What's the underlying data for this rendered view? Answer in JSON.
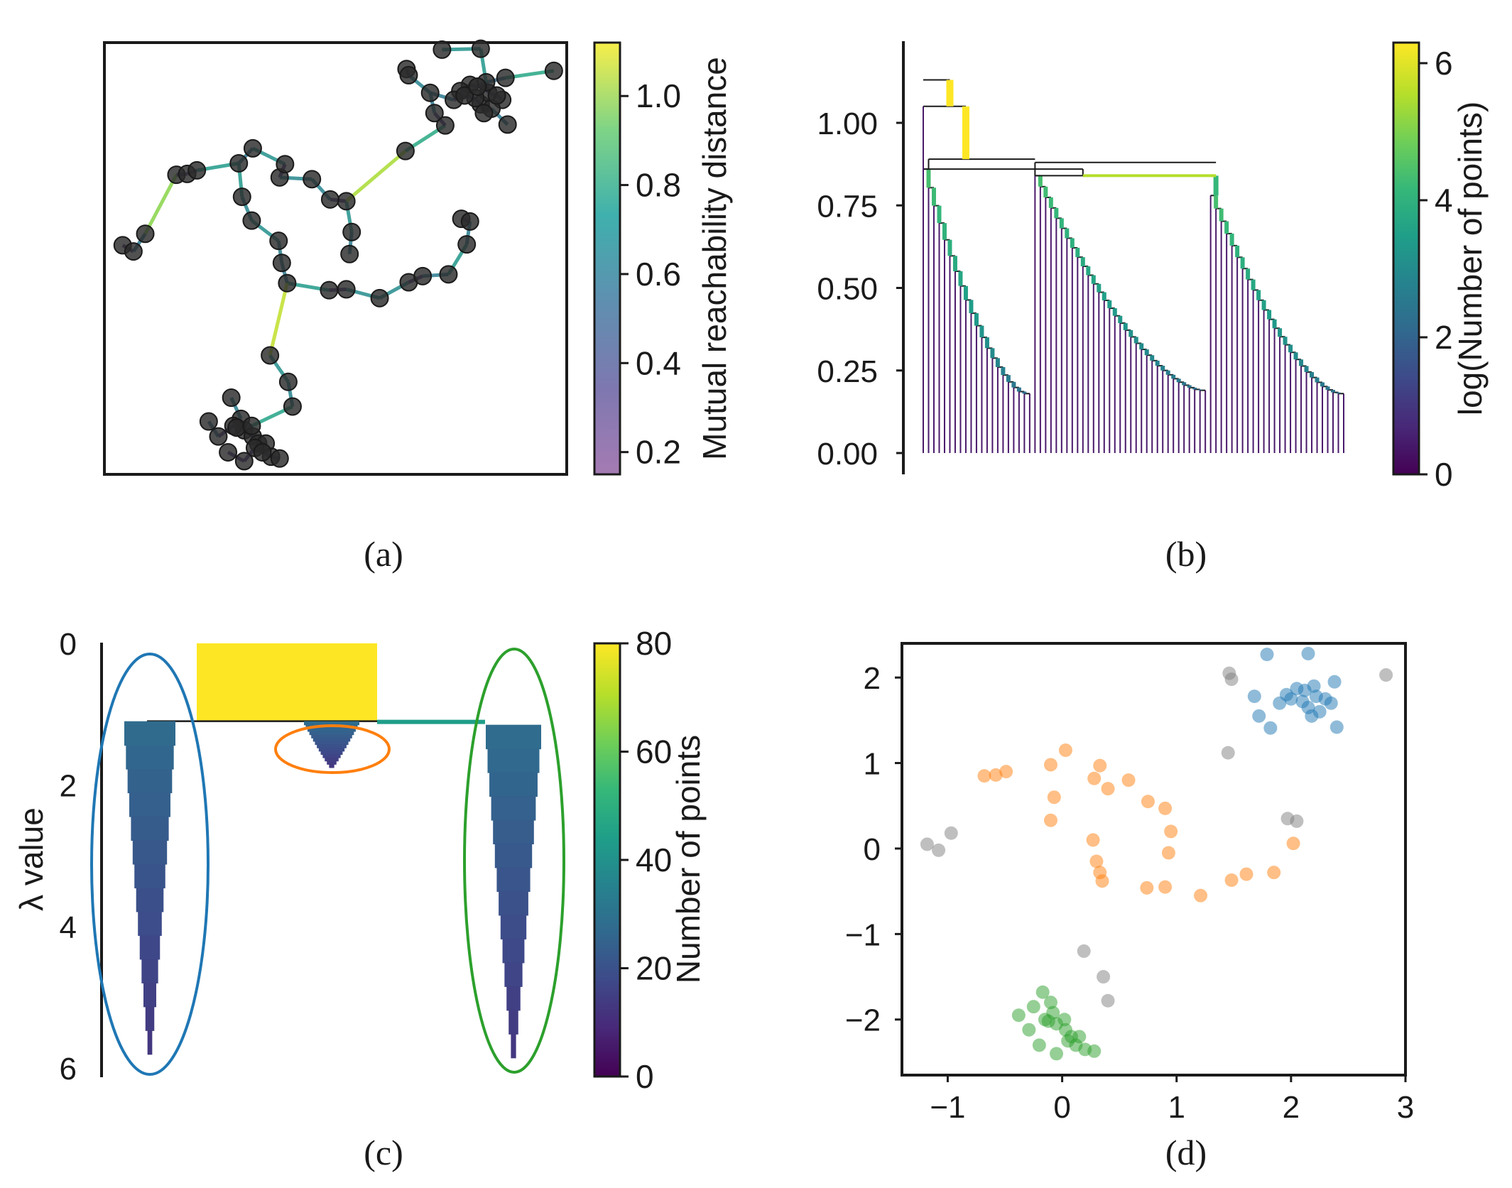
{
  "panels": {
    "a": {
      "label": "(a)"
    },
    "b": {
      "label": "(b)"
    },
    "c": {
      "label": "(c)"
    },
    "d": {
      "label": "(d)"
    }
  },
  "colors": {
    "axes": "#1a1a1a",
    "viridis": [
      "#440154",
      "#482878",
      "#3e4989",
      "#31688e",
      "#26828e",
      "#1f9e89",
      "#35b779",
      "#6ece58",
      "#b5de2b",
      "#fde725"
    ],
    "cluster_blue": "#1f77b4",
    "cluster_orange": "#ff7f0e",
    "cluster_green": "#2ca02c",
    "noise_grey": "#7f7f7f"
  },
  "chart_data": [
    {
      "panel": "a",
      "type": "scatter",
      "title": "",
      "colorbar": {
        "label": "Mutual reachability distance",
        "ticks": [
          "0.2",
          "0.4",
          "0.6",
          "0.8",
          "1.0"
        ],
        "range": [
          0.15,
          1.12
        ]
      },
      "note": "minimum spanning tree over points; points in panel units (same data as panel d)",
      "points": [
        [
          -1.18,
          0.05
        ],
        [
          -1.08,
          -0.02
        ],
        [
          -0.97,
          0.18
        ],
        [
          -0.68,
          0.85
        ],
        [
          -0.58,
          0.86
        ],
        [
          -0.49,
          0.9
        ],
        [
          -0.1,
          0.98
        ],
        [
          -0.07,
          0.6
        ],
        [
          0.02,
          0.33
        ],
        [
          0.03,
          1.15
        ],
        [
          0.28,
          0.82
        ],
        [
          0.33,
          0.97
        ],
        [
          0.58,
          0.8
        ],
        [
          0.27,
          0.1
        ],
        [
          0.3,
          -0.15
        ],
        [
          0.35,
          -0.38
        ],
        [
          0.74,
          -0.46
        ],
        [
          0.9,
          -0.45
        ],
        [
          1.21,
          -0.55
        ],
        [
          1.48,
          -0.37
        ],
        [
          1.61,
          -0.3
        ],
        [
          1.85,
          -0.28
        ],
        [
          2.02,
          0.06
        ],
        [
          0.9,
          0.55
        ],
        [
          0.75,
          0.57
        ],
        [
          0.95,
          0.2
        ],
        [
          0.93,
          -0.05
        ],
        [
          1.97,
          0.35
        ],
        [
          2.05,
          0.32
        ],
        [
          1.45,
          1.12
        ],
        [
          1.46,
          2.05
        ],
        [
          1.48,
          1.98
        ],
        [
          1.79,
          2.27
        ],
        [
          2.15,
          2.28
        ],
        [
          2.83,
          2.03
        ],
        [
          1.68,
          1.78
        ],
        [
          1.72,
          1.55
        ],
        [
          1.82,
          1.41
        ],
        [
          2.05,
          1.87
        ],
        [
          2.15,
          1.65
        ],
        [
          2.22,
          1.78
        ],
        [
          1.96,
          1.8
        ],
        [
          2.35,
          1.7
        ],
        [
          2.4,
          1.42
        ],
        [
          2.38,
          1.95
        ],
        [
          2.2,
          1.9
        ],
        [
          2.1,
          1.72
        ],
        [
          1.9,
          1.7
        ],
        [
          2.25,
          1.6
        ],
        [
          2.0,
          1.75
        ],
        [
          2.12,
          1.85
        ],
        [
          2.3,
          1.75
        ],
        [
          2.18,
          1.55
        ],
        [
          0.19,
          -1.2
        ],
        [
          0.36,
          -1.5
        ],
        [
          0.4,
          -1.78
        ],
        [
          -0.38,
          -1.95
        ],
        [
          -0.29,
          -2.12
        ],
        [
          -0.17,
          -1.68
        ],
        [
          -0.08,
          -1.92
        ],
        [
          -0.05,
          -2.05
        ],
        [
          0.03,
          -2.12
        ],
        [
          0.08,
          -2.2
        ],
        [
          0.15,
          -2.2
        ],
        [
          0.2,
          -2.35
        ],
        [
          -0.05,
          -2.4
        ],
        [
          -0.2,
          -2.3
        ],
        [
          -0.15,
          -2.0
        ],
        [
          0.05,
          -2.25
        ],
        [
          -0.12,
          -2.02
        ],
        [
          0.12,
          -2.3
        ],
        [
          0.28,
          -2.37
        ],
        [
          0.02,
          -2.0
        ]
      ]
    },
    {
      "panel": "b",
      "type": "dendrogram",
      "title": "",
      "yticks": [
        "0.00",
        "0.25",
        "0.50",
        "0.75",
        "1.00"
      ],
      "ylim": [
        0,
        1.2
      ],
      "colorbar": {
        "label": "log(Number of points)",
        "ticks": [
          "0",
          "2",
          "4",
          "6"
        ],
        "range": [
          0,
          6.3
        ]
      },
      "merge_heights": {
        "root": 1.13,
        "second": 1.05,
        "main_split": 0.89,
        "left_cluster_start": 0.86,
        "right_cluster_start": 0.84,
        "left_leaves_min": 0.16,
        "right_leaves_min": 0.14
      }
    },
    {
      "panel": "c",
      "type": "condensed_tree",
      "title": "",
      "ylabel": "λ value",
      "yticks": [
        "0",
        "2",
        "4",
        "6"
      ],
      "ylim": [
        0,
        6.3
      ],
      "colorbar": {
        "label": "Number of points",
        "ticks": [
          "0",
          "20",
          "40",
          "60",
          "80"
        ],
        "range": [
          0,
          80
        ]
      },
      "root": {
        "points": 80,
        "lambda_start": 0,
        "lambda_split": 1.1
      },
      "clusters": [
        {
          "name": "left",
          "circle_color": "#1f77b4",
          "lambda_birth": 1.1,
          "lambda_death": 5.8,
          "points": 26
        },
        {
          "name": "middle",
          "circle_color": "#ff7f0e",
          "lambda_birth": 1.1,
          "lambda_death": 1.75,
          "points": 27
        },
        {
          "name": "right",
          "circle_color": "#2ca02c",
          "lambda_birth": 1.15,
          "lambda_death": 5.85,
          "points": 27
        }
      ]
    },
    {
      "panel": "d",
      "type": "scatter",
      "title": "",
      "xticks": [
        "−1",
        "0",
        "1",
        "2",
        "3"
      ],
      "yticks": [
        "−2",
        "−1",
        "0",
        "1",
        "2"
      ],
      "xlim": [
        -1.4,
        3.0
      ],
      "ylim": [
        -2.65,
        2.4
      ],
      "series": [
        {
          "cluster": "blue",
          "color": "#1f77b4",
          "points": [
            [
              1.68,
              1.78
            ],
            [
              1.72,
              1.55
            ],
            [
              1.82,
              1.41
            ],
            [
              2.05,
              1.87
            ],
            [
              2.15,
              1.65
            ],
            [
              2.22,
              1.78
            ],
            [
              1.96,
              1.8
            ],
            [
              2.35,
              1.7
            ],
            [
              2.4,
              1.42
            ],
            [
              2.38,
              1.95
            ],
            [
              2.2,
              1.9
            ],
            [
              2.1,
              1.72
            ],
            [
              1.9,
              1.7
            ],
            [
              2.25,
              1.6
            ],
            [
              2.0,
              1.75
            ],
            [
              2.12,
              1.85
            ],
            [
              2.3,
              1.75
            ],
            [
              2.18,
              1.55
            ],
            [
              2.15,
              2.28
            ],
            [
              1.79,
              2.27
            ]
          ]
        },
        {
          "cluster": "orange",
          "color": "#ff7f0e",
          "points": [
            [
              -0.68,
              0.85
            ],
            [
              -0.58,
              0.86
            ],
            [
              -0.49,
              0.9
            ],
            [
              -0.1,
              0.98
            ],
            [
              -0.07,
              0.6
            ],
            [
              -0.1,
              0.33
            ],
            [
              0.03,
              1.15
            ],
            [
              0.28,
              0.82
            ],
            [
              0.33,
              0.97
            ],
            [
              0.58,
              0.8
            ],
            [
              0.27,
              0.1
            ],
            [
              0.3,
              -0.15
            ],
            [
              0.35,
              -0.38
            ],
            [
              0.33,
              -0.28
            ],
            [
              0.74,
              -0.46
            ],
            [
              0.9,
              -0.45
            ],
            [
              1.21,
              -0.55
            ],
            [
              1.48,
              -0.37
            ],
            [
              1.61,
              -0.3
            ],
            [
              1.85,
              -0.28
            ],
            [
              2.02,
              0.06
            ],
            [
              0.9,
              0.47
            ],
            [
              0.75,
              0.55
            ],
            [
              0.95,
              0.2
            ],
            [
              0.93,
              -0.05
            ],
            [
              0.4,
              0.7
            ]
          ]
        },
        {
          "cluster": "green",
          "color": "#2ca02c",
          "points": [
            [
              -0.38,
              -1.95
            ],
            [
              -0.29,
              -2.12
            ],
            [
              -0.17,
              -1.68
            ],
            [
              -0.08,
              -1.92
            ],
            [
              -0.05,
              -2.05
            ],
            [
              0.03,
              -2.12
            ],
            [
              0.08,
              -2.2
            ],
            [
              0.15,
              -2.2
            ],
            [
              0.2,
              -2.35
            ],
            [
              -0.05,
              -2.4
            ],
            [
              -0.2,
              -2.3
            ],
            [
              -0.15,
              -2.0
            ],
            [
              0.05,
              -2.25
            ],
            [
              -0.12,
              -2.02
            ],
            [
              0.12,
              -2.3
            ],
            [
              0.28,
              -2.37
            ],
            [
              0.02,
              -2.0
            ],
            [
              -0.25,
              -1.85
            ],
            [
              -0.1,
              -1.8
            ]
          ]
        },
        {
          "cluster": "noise",
          "color": "#7f7f7f",
          "points": [
            [
              -1.18,
              0.05
            ],
            [
              -1.08,
              -0.02
            ],
            [
              -0.97,
              0.18
            ],
            [
              1.45,
              1.12
            ],
            [
              1.46,
              2.05
            ],
            [
              1.48,
              1.98
            ],
            [
              2.83,
              2.03
            ],
            [
              1.97,
              0.35
            ],
            [
              2.05,
              0.32
            ],
            [
              0.19,
              -1.2
            ],
            [
              0.36,
              -1.5
            ],
            [
              0.4,
              -1.78
            ]
          ]
        }
      ]
    }
  ]
}
